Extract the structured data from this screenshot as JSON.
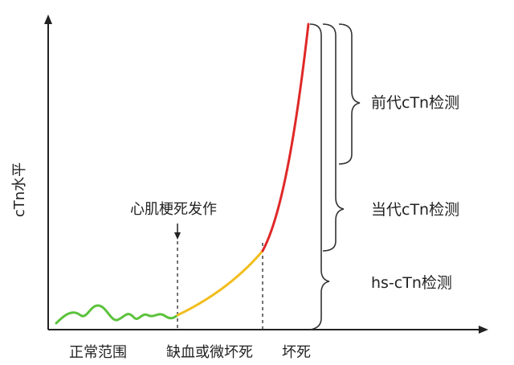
{
  "y_axis_label": "cTn水平",
  "event_label": "心肌梗死发作",
  "x_labels": {
    "normal": "正常范围",
    "ischemia": "缺血或微坏死",
    "necrosis": "坏死"
  },
  "detection_ranges": {
    "previous": "前代cTn检测",
    "current": "当代cTn检测",
    "hs": "hs-cTn检测"
  },
  "colors": {
    "axis": "#222222",
    "normal_curve": "#5cc23c",
    "ischemia_curve": "#f2bd1e",
    "necrosis_curve": "#e02828",
    "brace": "#333333",
    "dashed_line": "#444444"
  }
}
